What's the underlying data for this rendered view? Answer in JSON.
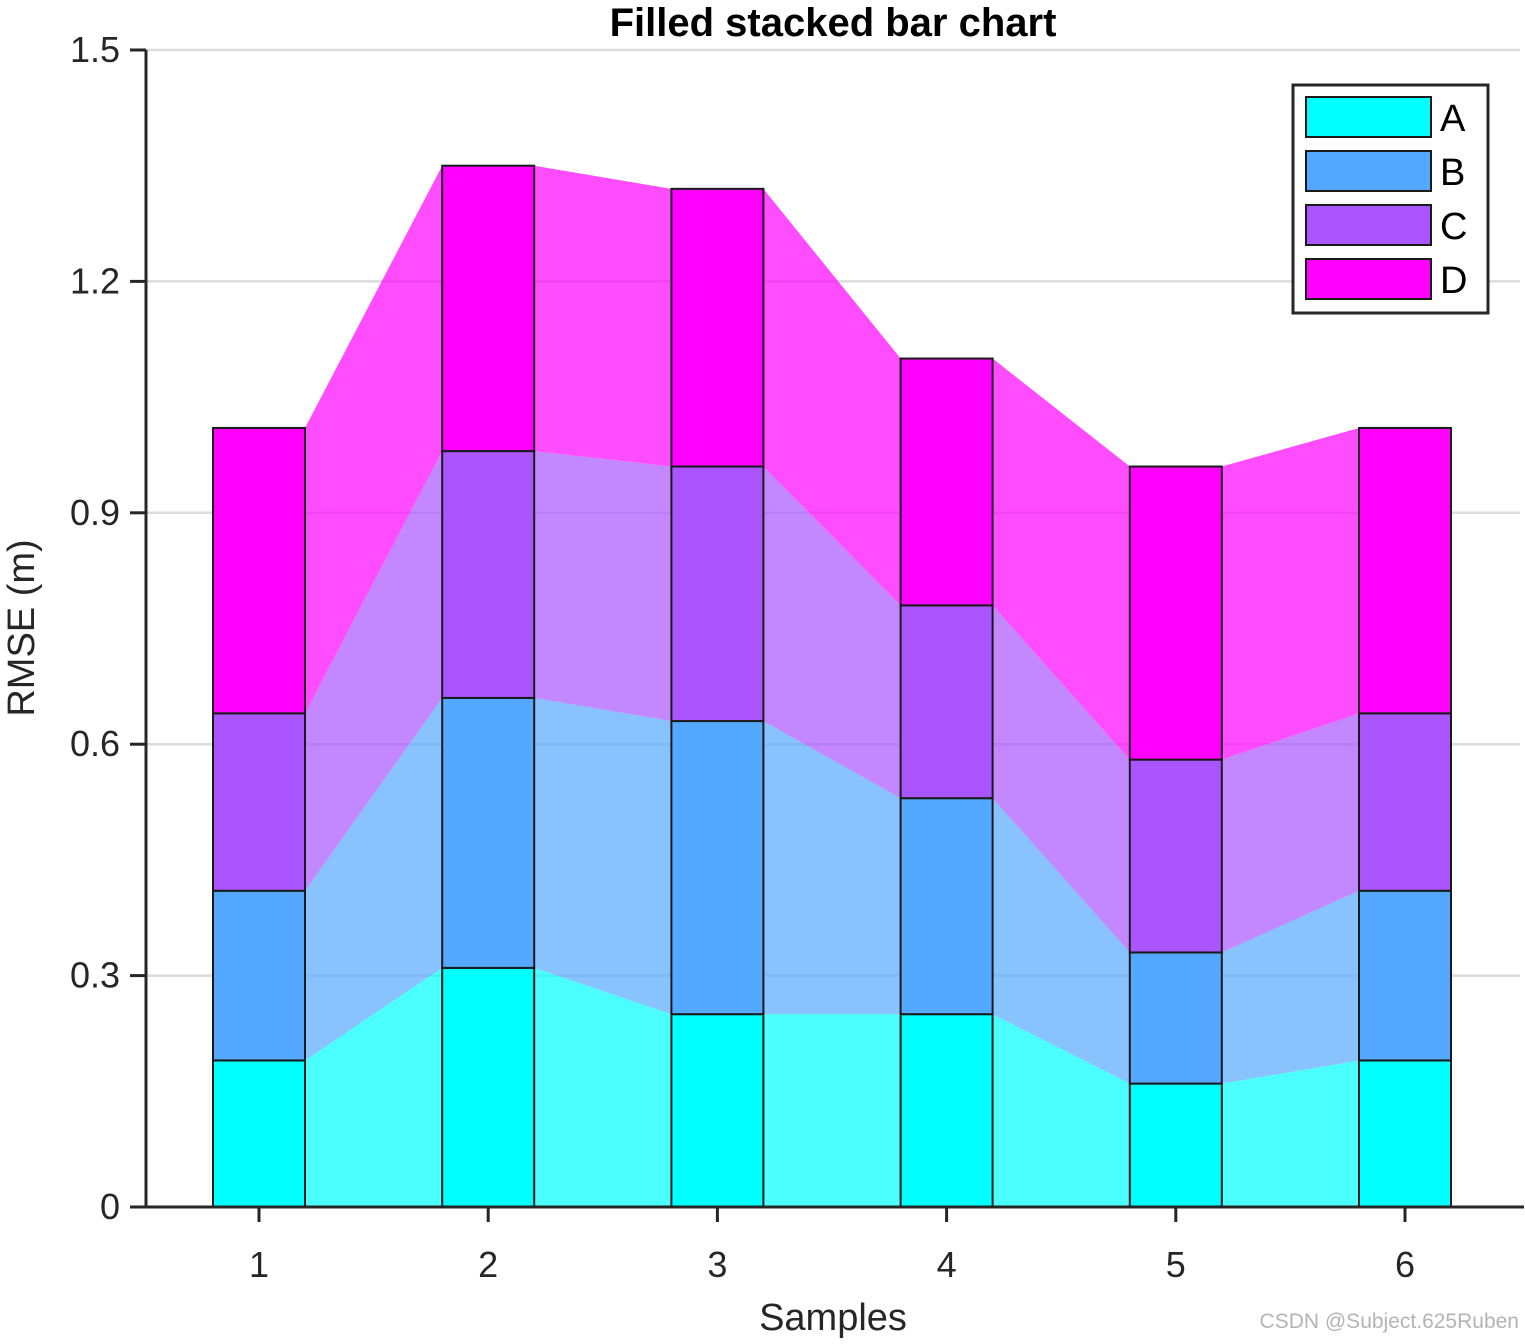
{
  "chart_data": {
    "type": "bar",
    "stacked": true,
    "title": "Filled stacked bar chart",
    "xlabel": "Samples",
    "ylabel": "RMSE (m)",
    "categories": [
      "1",
      "2",
      "3",
      "4",
      "5",
      "6"
    ],
    "ylim": [
      0,
      1.5
    ],
    "yticks": [
      0,
      0.3,
      0.6,
      0.9,
      1.2,
      1.5
    ],
    "ytick_labels": [
      "0",
      "0.3",
      "0.6",
      "0.9",
      "1.2",
      "1.5"
    ],
    "grid": "horizontal",
    "legend_position": "top-right",
    "series": [
      {
        "name": "A",
        "color": "#00FFFF",
        "values": [
          0.19,
          0.31,
          0.25,
          0.25,
          0.16,
          0.19
        ]
      },
      {
        "name": "B",
        "color": "#55A8FF",
        "values": [
          0.22,
          0.35,
          0.38,
          0.28,
          0.17,
          0.22
        ]
      },
      {
        "name": "C",
        "color": "#AA55FF",
        "values": [
          0.23,
          0.32,
          0.33,
          0.25,
          0.25,
          0.23
        ]
      },
      {
        "name": "D",
        "color": "#FF00FF",
        "values": [
          0.37,
          0.37,
          0.36,
          0.32,
          0.38,
          0.37
        ]
      }
    ]
  },
  "watermark": "CSDN @Subject.625Ruben"
}
